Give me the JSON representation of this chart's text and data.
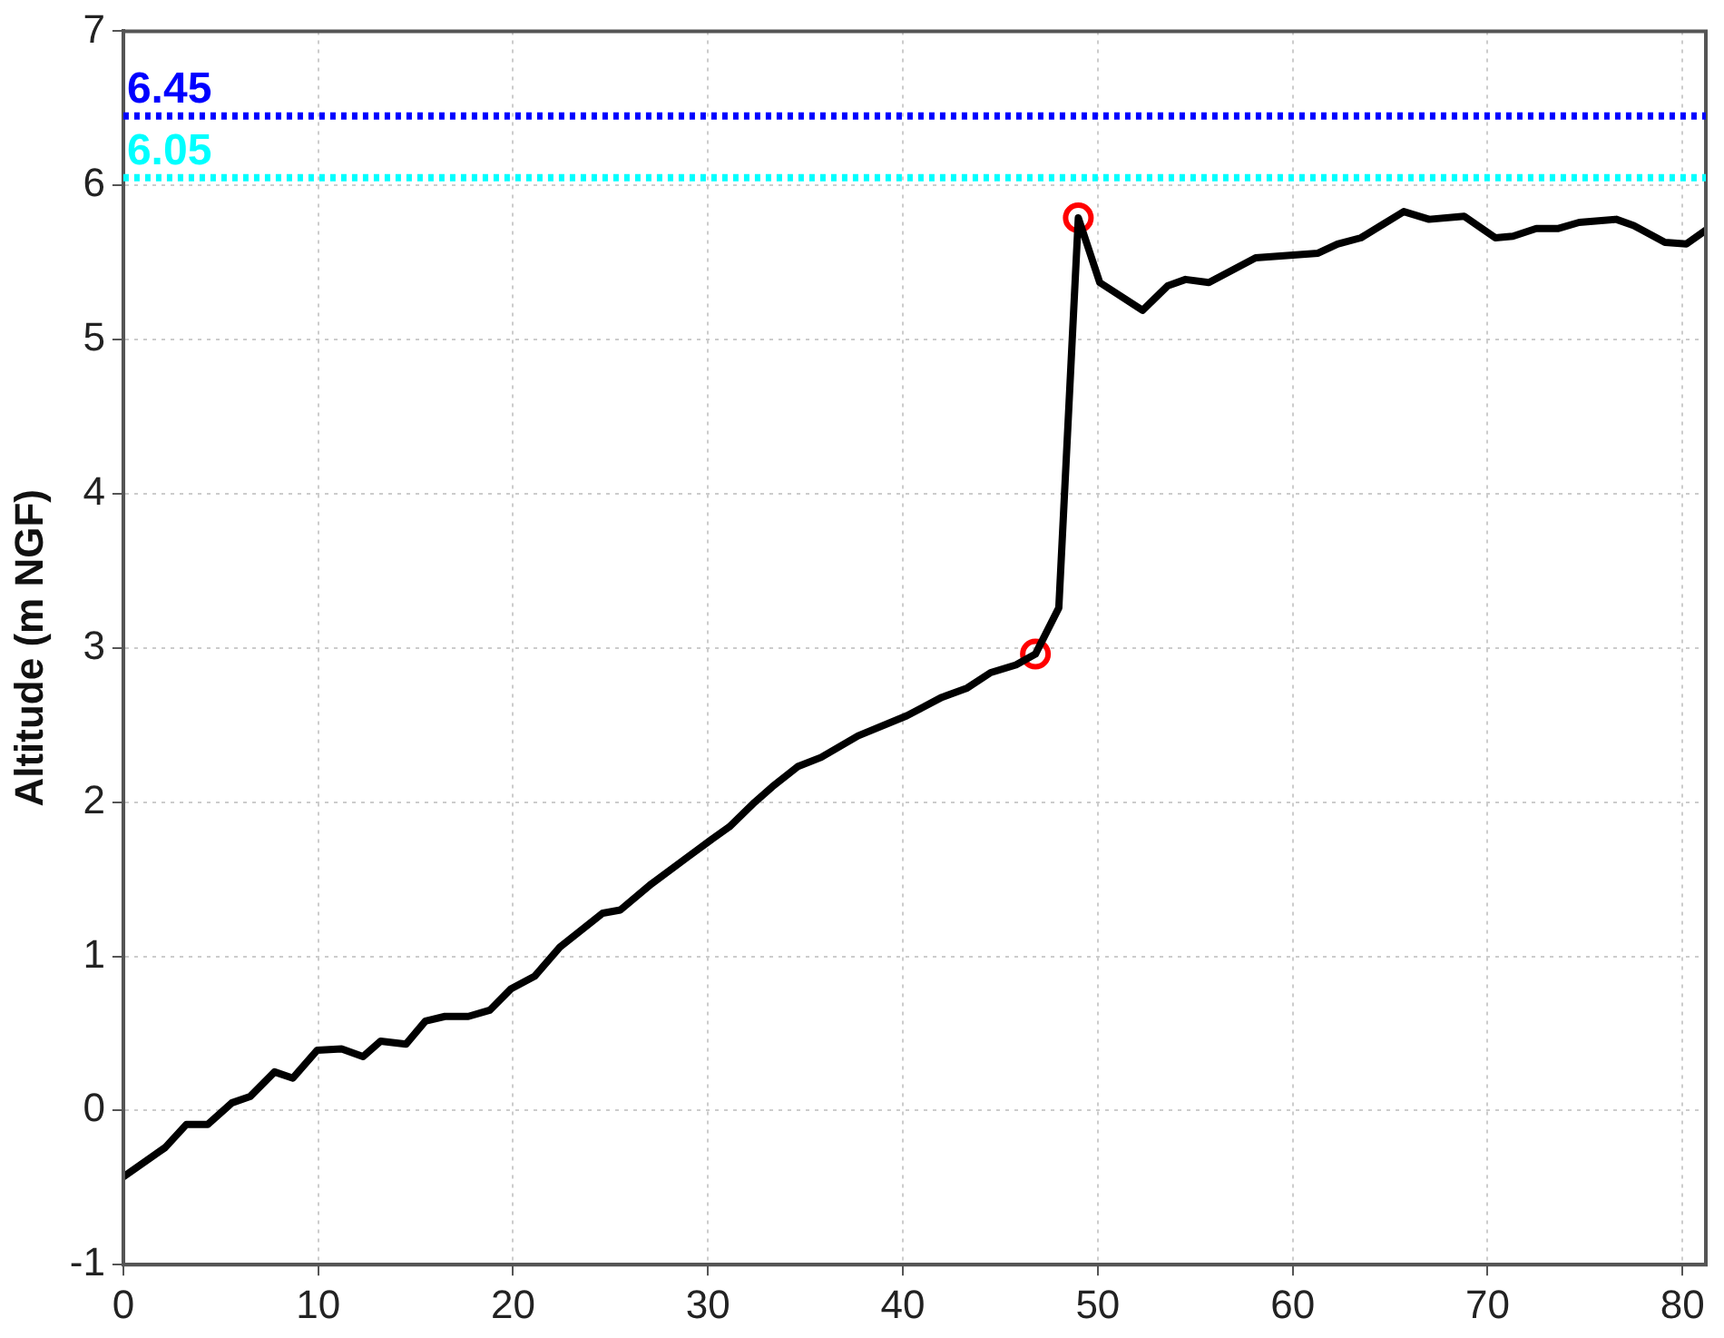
{
  "chart_data": {
    "type": "line",
    "ylabel": "Altitude (m NGF)",
    "xlim": [
      0,
      81.2
    ],
    "xticks": [
      0,
      10,
      20,
      30,
      40,
      50,
      60,
      70,
      80
    ],
    "ylim": [
      -1,
      7
    ],
    "yticks": [
      -1,
      0,
      1,
      2,
      3,
      4,
      5,
      6,
      7
    ],
    "grid": true,
    "legend": false,
    "line_style": "solid",
    "series": [
      {
        "color": "#000000",
        "marker": "none",
        "x": [
          0,
          2.15,
          3.24,
          4.33,
          5.58,
          6.5,
          7.76,
          8.7,
          9.94,
          11.2,
          12.3,
          13.2,
          14.5,
          15.5,
          16.5,
          17.7,
          18.8,
          19.9,
          21.1,
          22.4,
          24.6,
          25.5,
          27.1,
          30.2,
          31.1,
          32.4,
          33.3,
          34.6,
          35.8,
          37.7,
          40.2,
          42.0,
          43.3,
          44.5,
          45.8,
          46.8,
          48.0,
          49.0,
          50.1,
          52.3,
          53.6,
          54.5,
          55.7,
          58.1,
          61.3,
          62.3,
          63.5,
          65.7,
          67.0,
          68.8,
          70.4,
          71.3,
          72.5,
          73.6,
          74.7,
          76.6,
          77.5,
          79.1,
          80.2,
          81.2
        ],
        "values": [
          -0.43,
          -0.24,
          -0.09,
          -0.09,
          0.05,
          0.09,
          0.25,
          0.21,
          0.39,
          0.4,
          0.35,
          0.45,
          0.43,
          0.58,
          0.61,
          0.61,
          0.65,
          0.79,
          0.87,
          1.06,
          1.28,
          1.3,
          1.47,
          1.76,
          1.84,
          2.0,
          2.1,
          2.23,
          2.29,
          2.43,
          2.56,
          2.68,
          2.74,
          2.84,
          2.89,
          2.96,
          3.26,
          5.79,
          5.37,
          5.19,
          5.35,
          5.39,
          5.37,
          5.53,
          5.56,
          5.62,
          5.66,
          5.83,
          5.78,
          5.8,
          5.66,
          5.67,
          5.72,
          5.72,
          5.76,
          5.78,
          5.74,
          5.63,
          5.62,
          5.71
        ]
      },
      {
        "type": "scatter",
        "color": "#ff0000",
        "marker": "circle",
        "x": [
          46.8,
          49.0
        ],
        "values": [
          2.96,
          5.79
        ]
      }
    ],
    "ref_lines": [
      {
        "axis": "y",
        "value": 6.45,
        "label": "6.45",
        "color": "#0000ff",
        "line_style": "dotted"
      },
      {
        "axis": "y",
        "value": 6.05,
        "label": "6.05",
        "color": "#00ffff",
        "line_style": "dotted"
      }
    ]
  }
}
